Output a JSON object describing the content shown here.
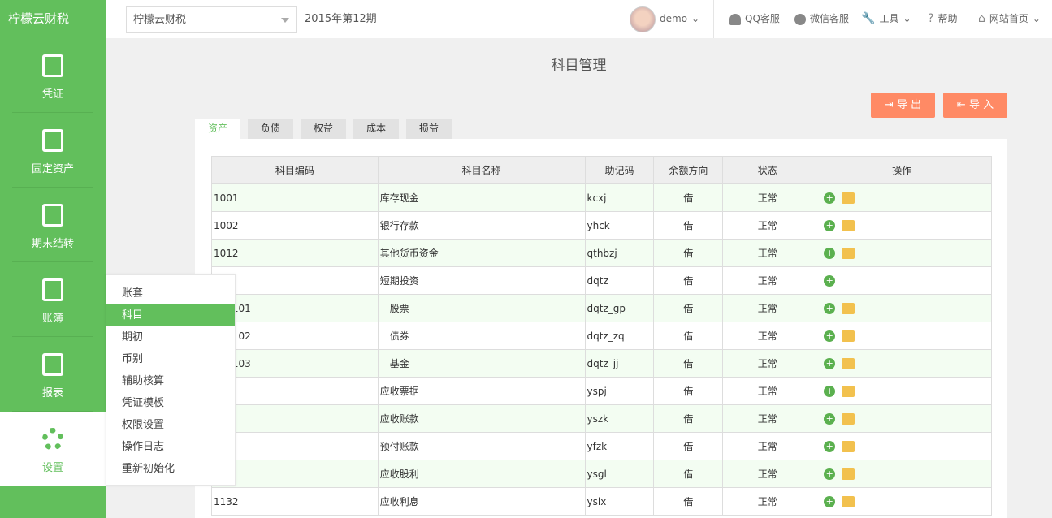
{
  "logo": "柠檬云财税",
  "header": {
    "account_select": "柠檬云财税",
    "period": "2015年第12期",
    "user": "demo",
    "links": [
      "QQ客服",
      "微信客服",
      "工具",
      "帮助",
      "网站首页"
    ]
  },
  "sidebar": [
    {
      "label": "凭证",
      "icon": "voucher-icon"
    },
    {
      "label": "固定资产",
      "icon": "building-icon"
    },
    {
      "label": "期末结转",
      "icon": "clipboard-icon"
    },
    {
      "label": "账簿",
      "icon": "ledger-icon"
    },
    {
      "label": "报表",
      "icon": "pie-chart-icon"
    },
    {
      "label": "设置",
      "icon": "gear-icon",
      "active": true
    }
  ],
  "settings_menu": [
    "账套",
    "科目",
    "期初",
    "币别",
    "辅助核算",
    "凭证模板",
    "权限设置",
    "操作日志",
    "重新初始化"
  ],
  "settings_menu_active": "科目",
  "page_title": "科目管理",
  "buttons": {
    "export": "导 出",
    "import": "导 入"
  },
  "tabs": [
    "资产",
    "负债",
    "权益",
    "成本",
    "损益"
  ],
  "active_tab": "资产",
  "columns": [
    "科目编码",
    "科目名称",
    "助记码",
    "余额方向",
    "状态",
    "操作"
  ],
  "rows": [
    [
      "1001",
      "库存现金",
      "kcxj",
      "借",
      "正常",
      true
    ],
    [
      "1002",
      "银行存款",
      "yhck",
      "借",
      "正常",
      true
    ],
    [
      "1012",
      "其他货币资金",
      "qthbzj",
      "借",
      "正常",
      true
    ],
    [
      "",
      "短期投资",
      "dqtz",
      "借",
      "正常",
      false
    ],
    [
      "110101",
      "股票",
      "dqtz_gp",
      "借",
      "正常",
      true
    ],
    [
      "110102",
      "债券",
      "dqtz_zq",
      "借",
      "正常",
      true
    ],
    [
      "110103",
      "基金",
      "dqtz_jj",
      "借",
      "正常",
      true
    ],
    [
      "",
      "应收票据",
      "yspj",
      "借",
      "正常",
      true
    ],
    [
      "",
      "应收账款",
      "yszk",
      "借",
      "正常",
      true
    ],
    [
      "",
      "预付账款",
      "yfzk",
      "借",
      "正常",
      true
    ],
    [
      "",
      "应收股利",
      "ysgl",
      "借",
      "正常",
      true
    ],
    [
      "1132",
      "应收利息",
      "yslx",
      "借",
      "正常",
      true
    ]
  ]
}
